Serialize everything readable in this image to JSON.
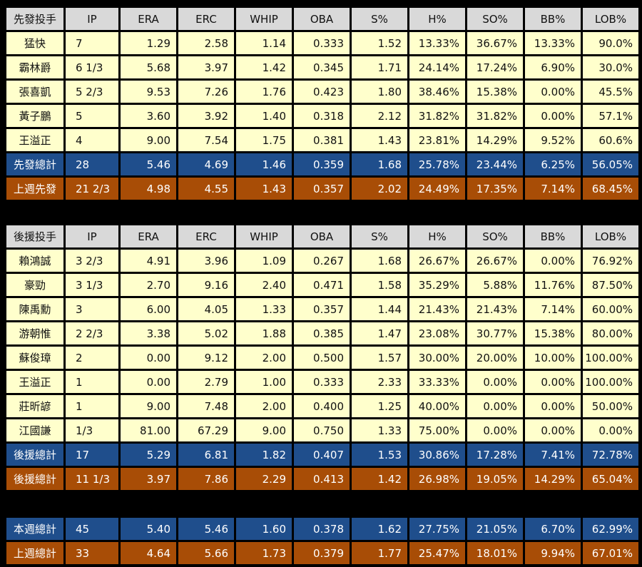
{
  "colors": {
    "header": "#d9d9d9",
    "row": "#ffffcc",
    "total_blue": "#1f4e8c",
    "total_orange": "#a84d06",
    "background": "#000000"
  },
  "starters": {
    "headers": [
      "先發投手",
      "IP",
      "ERA",
      "ERC",
      "WHIP",
      "OBA",
      "S%",
      "H%",
      "SO%",
      "BB%",
      "LOB%"
    ],
    "rows": [
      [
        "猛快",
        "7",
        "1.29",
        "2.58",
        "1.14",
        "0.333",
        "1.52",
        "13.33%",
        "36.67%",
        "13.33%",
        "90.0%"
      ],
      [
        "霸林爵",
        "6 1/3",
        "5.68",
        "3.97",
        "1.42",
        "0.345",
        "1.71",
        "24.14%",
        "17.24%",
        "6.90%",
        "30.0%"
      ],
      [
        "張喜凱",
        "5 2/3",
        "9.53",
        "7.26",
        "1.76",
        "0.423",
        "1.80",
        "38.46%",
        "15.38%",
        "0.00%",
        "45.5%"
      ],
      [
        "黃子鵬",
        "5",
        "3.60",
        "3.92",
        "1.40",
        "0.318",
        "2.12",
        "31.82%",
        "31.82%",
        "0.00%",
        "57.1%"
      ],
      [
        "王溢正",
        "4",
        "9.00",
        "7.54",
        "1.75",
        "0.381",
        "1.43",
        "23.81%",
        "14.29%",
        "9.52%",
        "60.6%"
      ]
    ],
    "total": [
      "先發總計",
      "28",
      "5.46",
      "4.69",
      "1.46",
      "0.359",
      "1.68",
      "25.78%",
      "23.44%",
      "6.25%",
      "56.05%"
    ],
    "last_week": [
      "上週先發",
      "21 2/3",
      "4.98",
      "4.55",
      "1.43",
      "0.357",
      "2.02",
      "24.49%",
      "17.35%",
      "7.14%",
      "68.45%"
    ]
  },
  "relievers": {
    "headers": [
      "後援投手",
      "IP",
      "ERA",
      "ERC",
      "WHIP",
      "OBA",
      "S%",
      "H%",
      "SO%",
      "BB%",
      "LOB%"
    ],
    "rows": [
      [
        "賴鴻誠",
        "3 2/3",
        "4.91",
        "3.96",
        "1.09",
        "0.267",
        "1.68",
        "26.67%",
        "26.67%",
        "0.00%",
        "76.92%"
      ],
      [
        "豪勁",
        "3 1/3",
        "2.70",
        "9.16",
        "2.40",
        "0.471",
        "1.58",
        "35.29%",
        "5.88%",
        "11.76%",
        "87.50%"
      ],
      [
        "陳禹勳",
        "3",
        "6.00",
        "4.05",
        "1.33",
        "0.357",
        "1.44",
        "21.43%",
        "21.43%",
        "7.14%",
        "60.00%"
      ],
      [
        "游朝惟",
        "2 2/3",
        "3.38",
        "5.02",
        "1.88",
        "0.385",
        "1.47",
        "23.08%",
        "30.77%",
        "15.38%",
        "80.00%"
      ],
      [
        "蘇俊璋",
        "2",
        "0.00",
        "9.12",
        "2.00",
        "0.500",
        "1.57",
        "30.00%",
        "20.00%",
        "10.00%",
        "100.00%"
      ],
      [
        "王溢正",
        "1",
        "0.00",
        "2.79",
        "1.00",
        "0.333",
        "2.33",
        "33.33%",
        "0.00%",
        "0.00%",
        "100.00%"
      ],
      [
        "莊昕諺",
        "1",
        "9.00",
        "7.48",
        "2.00",
        "0.400",
        "1.25",
        "40.00%",
        "0.00%",
        "0.00%",
        "50.00%"
      ],
      [
        "江國謙",
        "1/3",
        "81.00",
        "67.29",
        "9.00",
        "0.750",
        "1.33",
        "75.00%",
        "0.00%",
        "0.00%",
        "0.00%"
      ]
    ],
    "total": [
      "後援總計",
      "17",
      "5.29",
      "6.81",
      "1.82",
      "0.407",
      "1.53",
      "30.86%",
      "17.28%",
      "7.41%",
      "72.78%"
    ],
    "last_week": [
      "後援總計",
      "11 1/3",
      "3.97",
      "7.86",
      "2.29",
      "0.413",
      "1.42",
      "26.98%",
      "19.05%",
      "14.29%",
      "65.04%"
    ]
  },
  "totals": {
    "this_week": [
      "本週總計",
      "45",
      "5.40",
      "5.46",
      "1.60",
      "0.378",
      "1.62",
      "27.75%",
      "21.05%",
      "6.70%",
      "62.99%"
    ],
    "last_week": [
      "上週總計",
      "33",
      "4.64",
      "5.66",
      "1.73",
      "0.379",
      "1.77",
      "25.47%",
      "18.01%",
      "9.94%",
      "67.01%"
    ]
  }
}
